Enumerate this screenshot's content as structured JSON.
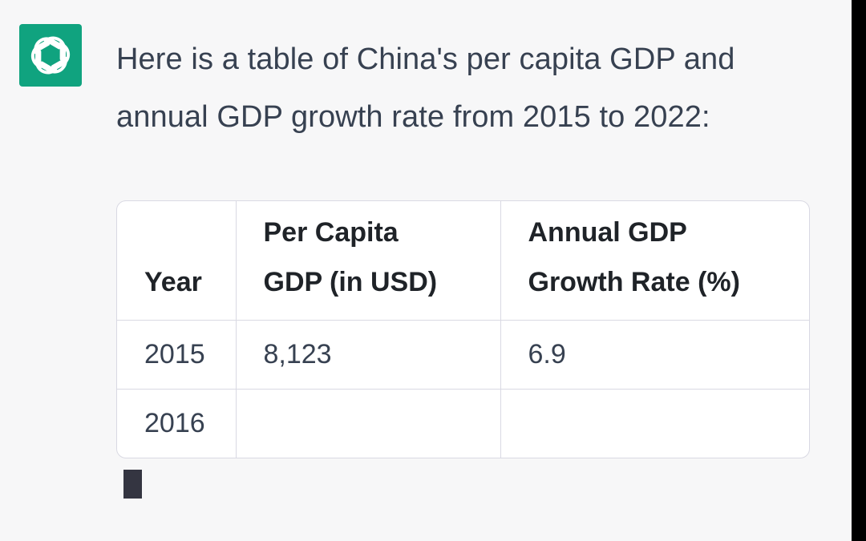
{
  "assistant": {
    "avatar_icon": "openai-logo-icon",
    "accent_color": "#10a37f"
  },
  "message": {
    "intro_line_1": "Here is a table of China's per capita GDP and",
    "intro_line_2": "annual GDP growth rate from 2015 to 2022:"
  },
  "table": {
    "headers": {
      "year": "Year",
      "per_capita_line_1": "Per Capita",
      "per_capita_line_2": "GDP (in USD)",
      "growth_line_1": "Annual GDP",
      "growth_line_2": "Growth Rate (%)"
    },
    "rows": [
      {
        "year": "2015",
        "per_capita_gdp": "8,123",
        "growth_rate": "6.9"
      },
      {
        "year": "2016",
        "per_capita_gdp": "",
        "growth_rate": ""
      }
    ]
  },
  "status": {
    "streaming_cursor": "visible"
  }
}
